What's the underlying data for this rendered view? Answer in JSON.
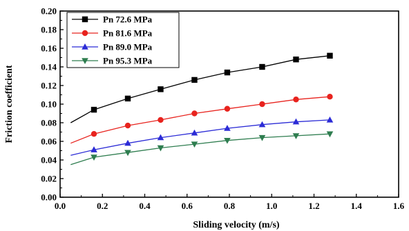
{
  "chart_data": {
    "type": "line",
    "xlabel": "Sliding velocity (m/s)",
    "ylabel": "Friction coefficient",
    "xlim": [
      0.0,
      1.6
    ],
    "ylim": [
      0.0,
      0.2
    ],
    "xticks": [
      0.0,
      0.2,
      0.4,
      0.6,
      0.8,
      1.0,
      1.2,
      1.4,
      1.6
    ],
    "yticks": [
      0.0,
      0.02,
      0.04,
      0.06,
      0.08,
      0.1,
      0.12,
      0.14,
      0.16,
      0.18,
      0.2
    ],
    "grid": false,
    "legend_position": "top-left",
    "series": [
      {
        "name": "Pn 72.6 MPa",
        "color": "#000000",
        "marker": "square",
        "line_start": [
          0.05,
          0.08
        ],
        "x": [
          0.16,
          0.32,
          0.475,
          0.635,
          0.79,
          0.955,
          1.115,
          1.275
        ],
        "y": [
          0.094,
          0.106,
          0.116,
          0.126,
          0.134,
          0.14,
          0.148,
          0.152
        ]
      },
      {
        "name": "Pn 81.6 MPa",
        "color": "#e8231e",
        "marker": "circle",
        "line_start": [
          0.05,
          0.058
        ],
        "x": [
          0.16,
          0.32,
          0.475,
          0.635,
          0.79,
          0.955,
          1.115,
          1.275
        ],
        "y": [
          0.068,
          0.077,
          0.083,
          0.09,
          0.095,
          0.1,
          0.105,
          0.108
        ]
      },
      {
        "name": "Pn 89.0 MPa",
        "color": "#2b2bd6",
        "marker": "triangle-up",
        "line_start": [
          0.05,
          0.045
        ],
        "x": [
          0.16,
          0.32,
          0.475,
          0.635,
          0.79,
          0.955,
          1.115,
          1.275
        ],
        "y": [
          0.051,
          0.058,
          0.064,
          0.069,
          0.074,
          0.078,
          0.081,
          0.083
        ]
      },
      {
        "name": "Pn 95.3 MPa",
        "color": "#2e7d4f",
        "marker": "triangle-down",
        "line_start": [
          0.05,
          0.035
        ],
        "x": [
          0.16,
          0.32,
          0.475,
          0.635,
          0.79,
          0.955,
          1.115,
          1.275
        ],
        "y": [
          0.043,
          0.048,
          0.053,
          0.057,
          0.061,
          0.064,
          0.066,
          0.068
        ]
      }
    ]
  }
}
